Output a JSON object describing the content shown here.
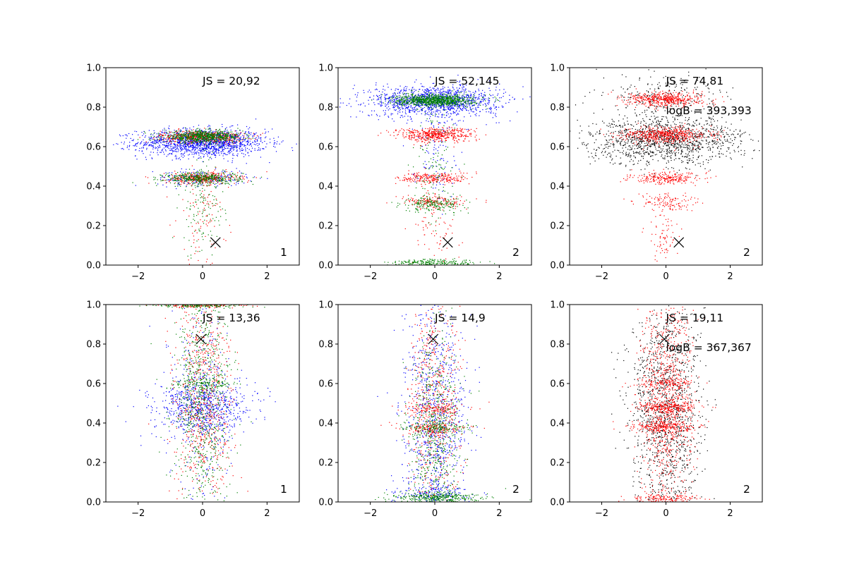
{
  "figure": {
    "layout": "2x3 grid of scatter plots",
    "series_colors": [
      "#0000ff",
      "#ff0000",
      "#008000",
      "#000000"
    ],
    "marker_color": "#000000"
  },
  "chart_data": [
    {
      "type": "scatter",
      "xlim": [
        -3,
        3
      ],
      "ylim": [
        0,
        1
      ],
      "xticks": [
        -2,
        0,
        2
      ],
      "yticks": [
        0.0,
        0.2,
        0.4,
        0.6,
        0.8,
        1.0
      ],
      "x_tick_labels": [
        "−2",
        "0",
        "2"
      ],
      "y_tick_labels": [
        "0.0",
        "0.2",
        "0.4",
        "0.6",
        "0.8",
        "1.0"
      ],
      "annotations": [
        "JS = 20,92"
      ],
      "corner_label": "1",
      "marker": {
        "x": 0.4,
        "y": 0.115
      },
      "series": [
        {
          "color": "#0000ff",
          "clusters": [
            {
              "y": 0.62,
              "x_sd": 1.0,
              "y_sd": 0.035,
              "n": 1500
            },
            {
              "y": 0.44,
              "x_sd": 0.7,
              "y_sd": 0.02,
              "n": 200
            }
          ]
        },
        {
          "color": "#ff0000",
          "clusters": [
            {
              "y": 0.65,
              "x_sd": 0.65,
              "y_sd": 0.015,
              "n": 500
            },
            {
              "y": 0.44,
              "x_sd": 0.55,
              "y_sd": 0.015,
              "n": 350
            },
            {
              "y": 0.25,
              "x_sd": 0.4,
              "y_sd": 0.12,
              "n": 100
            }
          ]
        },
        {
          "color": "#008000",
          "clusters": [
            {
              "y": 0.65,
              "x_sd": 0.6,
              "y_sd": 0.015,
              "n": 700
            },
            {
              "y": 0.44,
              "x_sd": 0.6,
              "y_sd": 0.015,
              "n": 400
            },
            {
              "y": 0.3,
              "x_sd": 0.35,
              "y_sd": 0.13,
              "n": 150
            }
          ]
        }
      ]
    },
    {
      "type": "scatter",
      "xlim": [
        -3,
        3
      ],
      "ylim": [
        0,
        1
      ],
      "xticks": [
        -2,
        0,
        2
      ],
      "yticks": [
        0.0,
        0.2,
        0.4,
        0.6,
        0.8,
        1.0
      ],
      "x_tick_labels": [
        "−2",
        "0",
        "2"
      ],
      "y_tick_labels": [
        "0.0",
        "0.2",
        "0.4",
        "0.6",
        "0.8",
        "1.0"
      ],
      "annotations": [
        "JS = 52,145"
      ],
      "corner_label": "2",
      "marker": {
        "x": 0.4,
        "y": 0.115
      },
      "series": [
        {
          "color": "#0000ff",
          "clusters": [
            {
              "y": 0.83,
              "x_sd": 1.0,
              "y_sd": 0.04,
              "n": 1300
            },
            {
              "y": 0.6,
              "x_sd": 0.35,
              "y_sd": 0.12,
              "n": 120
            }
          ]
        },
        {
          "color": "#ff0000",
          "clusters": [
            {
              "y": 0.66,
              "x_sd": 0.6,
              "y_sd": 0.018,
              "n": 500
            },
            {
              "y": 0.44,
              "x_sd": 0.55,
              "y_sd": 0.015,
              "n": 250
            },
            {
              "y": 0.32,
              "x_sd": 0.5,
              "y_sd": 0.015,
              "n": 150
            },
            {
              "y": 0.2,
              "x_sd": 0.35,
              "y_sd": 0.1,
              "n": 80
            }
          ]
        },
        {
          "color": "#008000",
          "clusters": [
            {
              "y": 0.835,
              "x_sd": 0.6,
              "y_sd": 0.015,
              "n": 900
            },
            {
              "y": 0.31,
              "x_sd": 0.5,
              "y_sd": 0.02,
              "n": 200
            },
            {
              "y": 0.01,
              "x_sd": 0.7,
              "y_sd": 0.01,
              "n": 250
            },
            {
              "y": 0.5,
              "x_sd": 0.3,
              "y_sd": 0.15,
              "n": 120
            }
          ]
        }
      ]
    },
    {
      "type": "scatter",
      "xlim": [
        -3,
        3
      ],
      "ylim": [
        0,
        1
      ],
      "xticks": [
        -2,
        0,
        2
      ],
      "yticks": [
        0.0,
        0.2,
        0.4,
        0.6,
        0.8,
        1.0
      ],
      "x_tick_labels": [
        "−2",
        "0",
        "2"
      ],
      "y_tick_labels": [
        "0.0",
        "0.2",
        "0.4",
        "0.6",
        "0.8",
        "1.0"
      ],
      "annotations": [
        "JS = 74,81",
        "logB = 393,393"
      ],
      "corner_label": "2",
      "marker": {
        "x": 0.4,
        "y": 0.115
      },
      "series": [
        {
          "color": "#000000",
          "clusters": [
            {
              "y": 0.63,
              "x_sd": 1.2,
              "y_sd": 0.06,
              "n": 1300
            },
            {
              "y": 0.85,
              "x_sd": 0.9,
              "y_sd": 0.06,
              "n": 250
            }
          ]
        },
        {
          "color": "#ff0000",
          "clusters": [
            {
              "y": 0.84,
              "x_sd": 0.6,
              "y_sd": 0.018,
              "n": 500
            },
            {
              "y": 0.66,
              "x_sd": 0.65,
              "y_sd": 0.02,
              "n": 550
            },
            {
              "y": 0.44,
              "x_sd": 0.55,
              "y_sd": 0.015,
              "n": 250
            },
            {
              "y": 0.32,
              "x_sd": 0.45,
              "y_sd": 0.02,
              "n": 120
            },
            {
              "y": 0.15,
              "x_sd": 0.3,
              "y_sd": 0.08,
              "n": 80
            }
          ]
        }
      ]
    },
    {
      "type": "scatter",
      "xlim": [
        -3,
        3
      ],
      "ylim": [
        0,
        1
      ],
      "xticks": [
        -2,
        0,
        2
      ],
      "yticks": [
        0.0,
        0.2,
        0.4,
        0.6,
        0.8,
        1.0
      ],
      "x_tick_labels": [
        "−2",
        "0",
        "2"
      ],
      "y_tick_labels": [
        "0.0",
        "0.2",
        "0.4",
        "0.6",
        "0.8",
        "1.0"
      ],
      "annotations": [
        "JS = 13,36"
      ],
      "corner_label": "1",
      "marker": {
        "x": -0.05,
        "y": 0.825
      },
      "series": [
        {
          "color": "#0000ff",
          "clusters": [
            {
              "y": 0.48,
              "x_sd": 0.75,
              "y_sd": 0.07,
              "n": 700
            },
            {
              "y": 0.5,
              "x_sd": 0.45,
              "y_sd": 0.28,
              "n": 300
            }
          ]
        },
        {
          "color": "#ff0000",
          "clusters": [
            {
              "y": 0.5,
              "x_sd": 0.45,
              "y_sd": 0.3,
              "n": 700
            },
            {
              "y": 0.995,
              "x_sd": 0.7,
              "y_sd": 0.006,
              "n": 150
            }
          ]
        },
        {
          "color": "#008000",
          "clusters": [
            {
              "y": 0.5,
              "x_sd": 0.45,
              "y_sd": 0.3,
              "n": 800
            },
            {
              "y": 0.995,
              "x_sd": 0.7,
              "y_sd": 0.006,
              "n": 150
            },
            {
              "y": 0.6,
              "x_sd": 0.5,
              "y_sd": 0.015,
              "n": 120
            }
          ]
        }
      ]
    },
    {
      "type": "scatter",
      "xlim": [
        -3,
        3
      ],
      "ylim": [
        0,
        1
      ],
      "xticks": [
        -2,
        0,
        2
      ],
      "yticks": [
        0.0,
        0.2,
        0.4,
        0.6,
        0.8,
        1.0
      ],
      "x_tick_labels": [
        "−2",
        "0",
        "2"
      ],
      "y_tick_labels": [
        "0.0",
        "0.2",
        "0.4",
        "0.6",
        "0.8",
        "1.0"
      ],
      "annotations": [
        "JS = 14,9"
      ],
      "corner_label": "2",
      "marker": {
        "x": -0.05,
        "y": 0.825
      },
      "series": [
        {
          "color": "#0000ff",
          "clusters": [
            {
              "y": 0.42,
              "x_sd": 0.5,
              "y_sd": 0.28,
              "n": 900
            },
            {
              "y": 0.04,
              "x_sd": 0.6,
              "y_sd": 0.02,
              "n": 150
            }
          ]
        },
        {
          "color": "#ff0000",
          "clusters": [
            {
              "y": 0.5,
              "x_sd": 0.4,
              "y_sd": 0.3,
              "n": 550
            },
            {
              "y": 0.375,
              "x_sd": 0.55,
              "y_sd": 0.015,
              "n": 150
            },
            {
              "y": 0.47,
              "x_sd": 0.5,
              "y_sd": 0.015,
              "n": 150
            }
          ]
        },
        {
          "color": "#008000",
          "clusters": [
            {
              "y": 0.35,
              "x_sd": 0.4,
              "y_sd": 0.25,
              "n": 600
            },
            {
              "y": 0.02,
              "x_sd": 0.7,
              "y_sd": 0.015,
              "n": 350
            },
            {
              "y": 0.375,
              "x_sd": 0.55,
              "y_sd": 0.015,
              "n": 150
            }
          ]
        }
      ]
    },
    {
      "type": "scatter",
      "xlim": [
        -3,
        3
      ],
      "ylim": [
        0,
        1
      ],
      "xticks": [
        -2,
        0,
        2
      ],
      "yticks": [
        0.0,
        0.2,
        0.4,
        0.6,
        0.8,
        1.0
      ],
      "x_tick_labels": [
        "−2",
        "0",
        "2"
      ],
      "y_tick_labels": [
        "0.0",
        "0.2",
        "0.4",
        "0.6",
        "0.8",
        "1.0"
      ],
      "annotations": [
        "JS = 19,11",
        "logB = 367,367"
      ],
      "corner_label": "2",
      "marker": {
        "x": -0.05,
        "y": 0.825
      },
      "series": [
        {
          "color": "#000000",
          "clusters": [
            {
              "y": 0.45,
              "x_sd": 0.55,
              "y_sd": 0.28,
              "n": 1300
            }
          ]
        },
        {
          "color": "#ff0000",
          "clusters": [
            {
              "y": 0.5,
              "x_sd": 0.4,
              "y_sd": 0.3,
              "n": 900
            },
            {
              "y": 0.38,
              "x_sd": 0.5,
              "y_sd": 0.015,
              "n": 250
            },
            {
              "y": 0.48,
              "x_sd": 0.5,
              "y_sd": 0.015,
              "n": 250
            },
            {
              "y": 0.6,
              "x_sd": 0.45,
              "y_sd": 0.015,
              "n": 120
            },
            {
              "y": 0.015,
              "x_sd": 0.55,
              "y_sd": 0.012,
              "n": 150
            }
          ]
        }
      ]
    }
  ]
}
